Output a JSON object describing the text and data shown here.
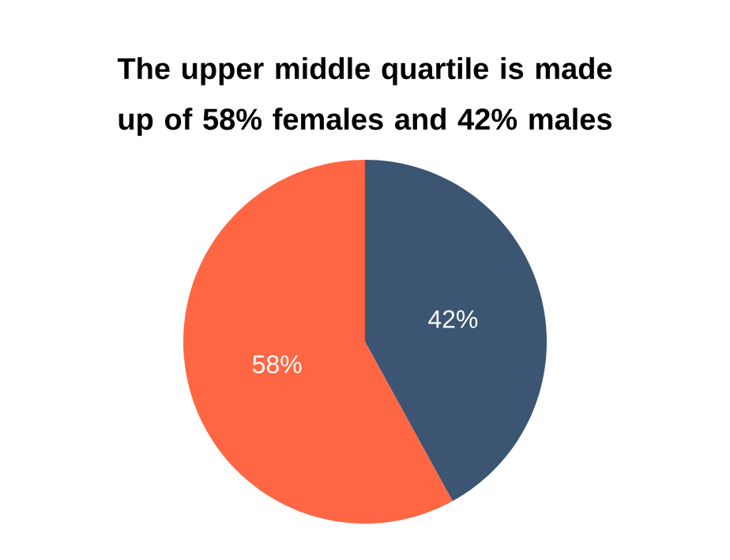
{
  "chart_data": {
    "type": "pie",
    "title": "The upper middle quartile is made up of 58% females and 42% males",
    "categories": [
      null,
      null
    ],
    "values": [
      42,
      58
    ],
    "colors": [
      "#3b5573",
      "#ff6644"
    ],
    "value_labels": [
      "42%",
      "58%"
    ]
  }
}
